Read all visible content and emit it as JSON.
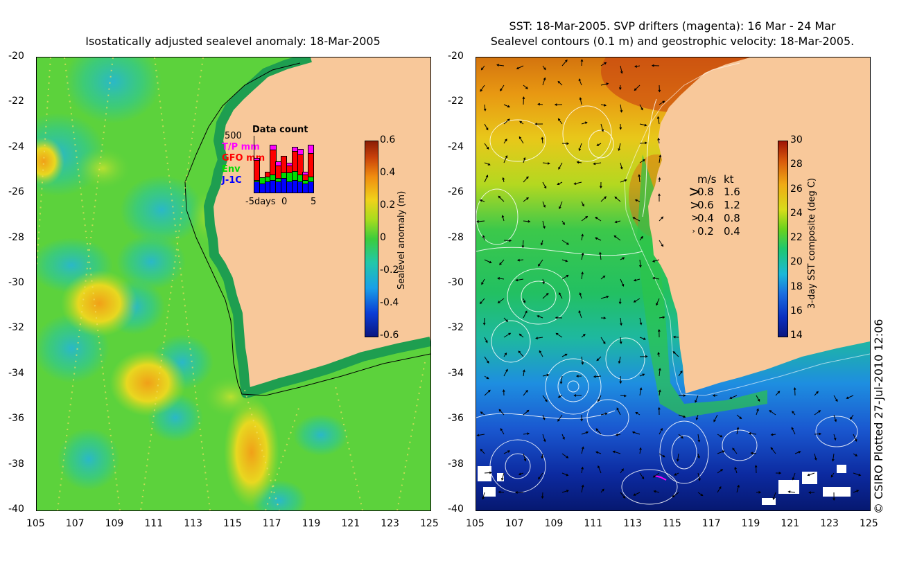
{
  "left_panel": {
    "title": "Isostatically adjusted sealevel anomaly: 18-Mar-2005",
    "y_ticks": [
      "-20",
      "-22",
      "-24",
      "-26",
      "-28",
      "-30",
      "-32",
      "-34",
      "-36",
      "-38",
      "-40"
    ],
    "x_ticks": [
      "105",
      "107",
      "109",
      "111",
      "113",
      "115",
      "117",
      "119",
      "121",
      "123",
      "125"
    ],
    "colorbar": {
      "label": "Sealevel anomaly (m)",
      "ticks": [
        "0.6",
        "0.4",
        "0.2",
        "0",
        "-0.2",
        "-0.4",
        "-0.6"
      ]
    },
    "data_count": {
      "title": "Data count",
      "y_max": "500",
      "legend": [
        {
          "label": "T/P mm",
          "color": "#ff00ff"
        },
        {
          "label": "GFO mm",
          "color": "#ff0000"
        },
        {
          "label": "Env",
          "color": "#00dd00"
        },
        {
          "label": "J-1C",
          "color": "#0000ff"
        }
      ],
      "x_labels": [
        "-5days",
        "0",
        "5"
      ],
      "bars": [
        {
          "jc": 0.3,
          "env": 0.35,
          "gfo": 0.9,
          "tp": 0.95
        },
        {
          "jc": 0.25,
          "env": 0.4,
          "gfo": 0.3,
          "tp": 0.0
        },
        {
          "jc": 0.3,
          "env": 0.45,
          "gfo": 0.55,
          "tp": 0.0
        },
        {
          "jc": 0.35,
          "env": 0.5,
          "gfo": 1.2,
          "tp": 1.3
        },
        {
          "jc": 0.3,
          "env": 0.4,
          "gfo": 0.75,
          "tp": 0.85
        },
        {
          "jc": 0.4,
          "env": 0.55,
          "gfo": 1.0,
          "tp": 1.0
        },
        {
          "jc": 0.3,
          "env": 0.55,
          "gfo": 0.75,
          "tp": 0.8
        },
        {
          "jc": 0.35,
          "env": 0.6,
          "gfo": 1.15,
          "tp": 1.25
        },
        {
          "jc": 0.3,
          "env": 0.5,
          "gfo": 1.05,
          "tp": 1.2
        },
        {
          "jc": 0.25,
          "env": 0.35,
          "gfo": 0.5,
          "tp": 0.55
        },
        {
          "jc": 0.3,
          "env": 0.45,
          "gfo": 1.1,
          "tp": 1.3
        }
      ]
    }
  },
  "right_panel": {
    "title_line1": "SST: 18-Mar-2005. SVP drifters (magenta): 16 Mar - 24 Mar",
    "title_line2": "Sealevel contours (0.1 m) and geostrophic velocity: 18-Mar-2005.",
    "y_ticks": [
      "-20",
      "-22",
      "-24",
      "-26",
      "-28",
      "-30",
      "-32",
      "-34",
      "-36",
      "-38",
      "-40"
    ],
    "x_ticks": [
      "105",
      "107",
      "109",
      "111",
      "113",
      "115",
      "117",
      "119",
      "121",
      "123",
      "125"
    ],
    "colorbar": {
      "label": "3-day SST composite (deg C)",
      "ticks": [
        "30",
        "28",
        "26",
        "24",
        "22",
        "20",
        "18",
        "16",
        "14"
      ]
    },
    "velocity_legend": {
      "header_ms": "m/s",
      "header_kt": "kt",
      "rows": [
        {
          "ms": "0.8",
          "kt": "1.6"
        },
        {
          "ms": "0.6",
          "kt": "1.2"
        },
        {
          "ms": "0.4",
          "kt": "0.8"
        },
        {
          "ms": "0.2",
          "kt": "0.4"
        }
      ]
    }
  },
  "credit": "© CSIRO Plotted 27-Jul-2010 12:06",
  "colors": {
    "land": "#f8c89a",
    "coast_green": "#1e9e50"
  }
}
